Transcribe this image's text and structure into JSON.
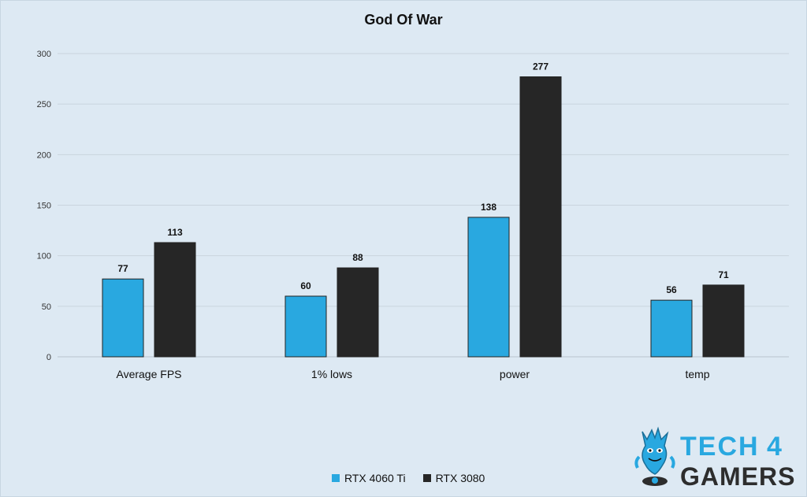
{
  "chart_data": {
    "type": "bar",
    "title": "God Of War",
    "categories": [
      "Average FPS",
      "1% lows",
      "power",
      "temp"
    ],
    "series": [
      {
        "name": "RTX 4060 Ti",
        "color": "#29a8e0",
        "values": [
          77,
          60,
          138,
          56
        ]
      },
      {
        "name": "RTX 3080",
        "color": "#262626",
        "values": [
          113,
          88,
          277,
          71
        ]
      }
    ],
    "ylim": [
      0,
      300
    ],
    "yticks": [
      0,
      50,
      100,
      150,
      200,
      250,
      300
    ],
    "grid": true,
    "legend_position": "bottom"
  },
  "logo": {
    "line1": "TECH",
    "digit": "4",
    "line2": "GAMERS",
    "primary_color": "#29a8e0",
    "secondary_color": "#2d2d2d",
    "icon": "mascot-icon"
  }
}
